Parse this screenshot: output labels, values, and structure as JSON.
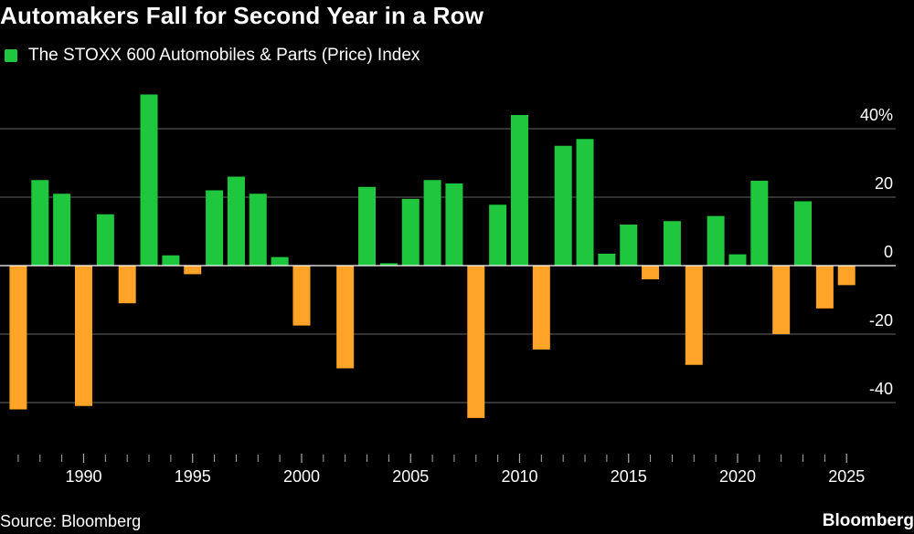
{
  "title": "Automakers Fall for Second Year in a Row",
  "source": "Source: Bloomberg",
  "brand": "Bloomberg",
  "colors": {
    "positive": "#1ec73e",
    "negative": "#ffa329",
    "grid": "#666666",
    "background": "#000000"
  },
  "chart_data": {
    "type": "bar",
    "title": "Automakers Fall for Second Year in a Row",
    "legend": [
      {
        "name": "The STOXX 600 Automobiles & Parts (Price) Index",
        "color": "#1ec73e"
      }
    ],
    "legend_position": "top-left",
    "y_axis_side": "right",
    "ylim": [
      -48,
      52
    ],
    "yticks": [
      40,
      20,
      0,
      -20,
      -40
    ],
    "ytick_labels": [
      "40%",
      "20",
      "0",
      "-20",
      "-40"
    ],
    "xticks": [
      1990,
      1995,
      2000,
      2005,
      2010,
      2015,
      2020,
      2025
    ],
    "grid": true,
    "series": [
      {
        "name": "The STOXX 600 Automobiles & Parts (Price) Index",
        "x": [
          1987,
          1988,
          1989,
          1990,
          1991,
          1992,
          1993,
          1994,
          1995,
          1996,
          1997,
          1998,
          1999,
          2000,
          2001,
          2002,
          2003,
          2004,
          2005,
          2006,
          2007,
          2008,
          2009,
          2010,
          2011,
          2012,
          2013,
          2014,
          2015,
          2016,
          2017,
          2018,
          2019,
          2020,
          2021,
          2022,
          2023,
          2024,
          2025
        ],
        "values": [
          -42,
          25,
          21,
          -41,
          15,
          -11,
          50,
          3,
          -2.5,
          22,
          26,
          21,
          2.5,
          -17.5,
          0,
          -30,
          23,
          0.7,
          19.5,
          25,
          24,
          -44.5,
          17.8,
          44,
          -24.5,
          35,
          37,
          3.5,
          12,
          -4,
          13,
          -29,
          14.5,
          3.3,
          24.8,
          -20,
          18.8,
          -12.5,
          -5.7
        ]
      }
    ]
  }
}
